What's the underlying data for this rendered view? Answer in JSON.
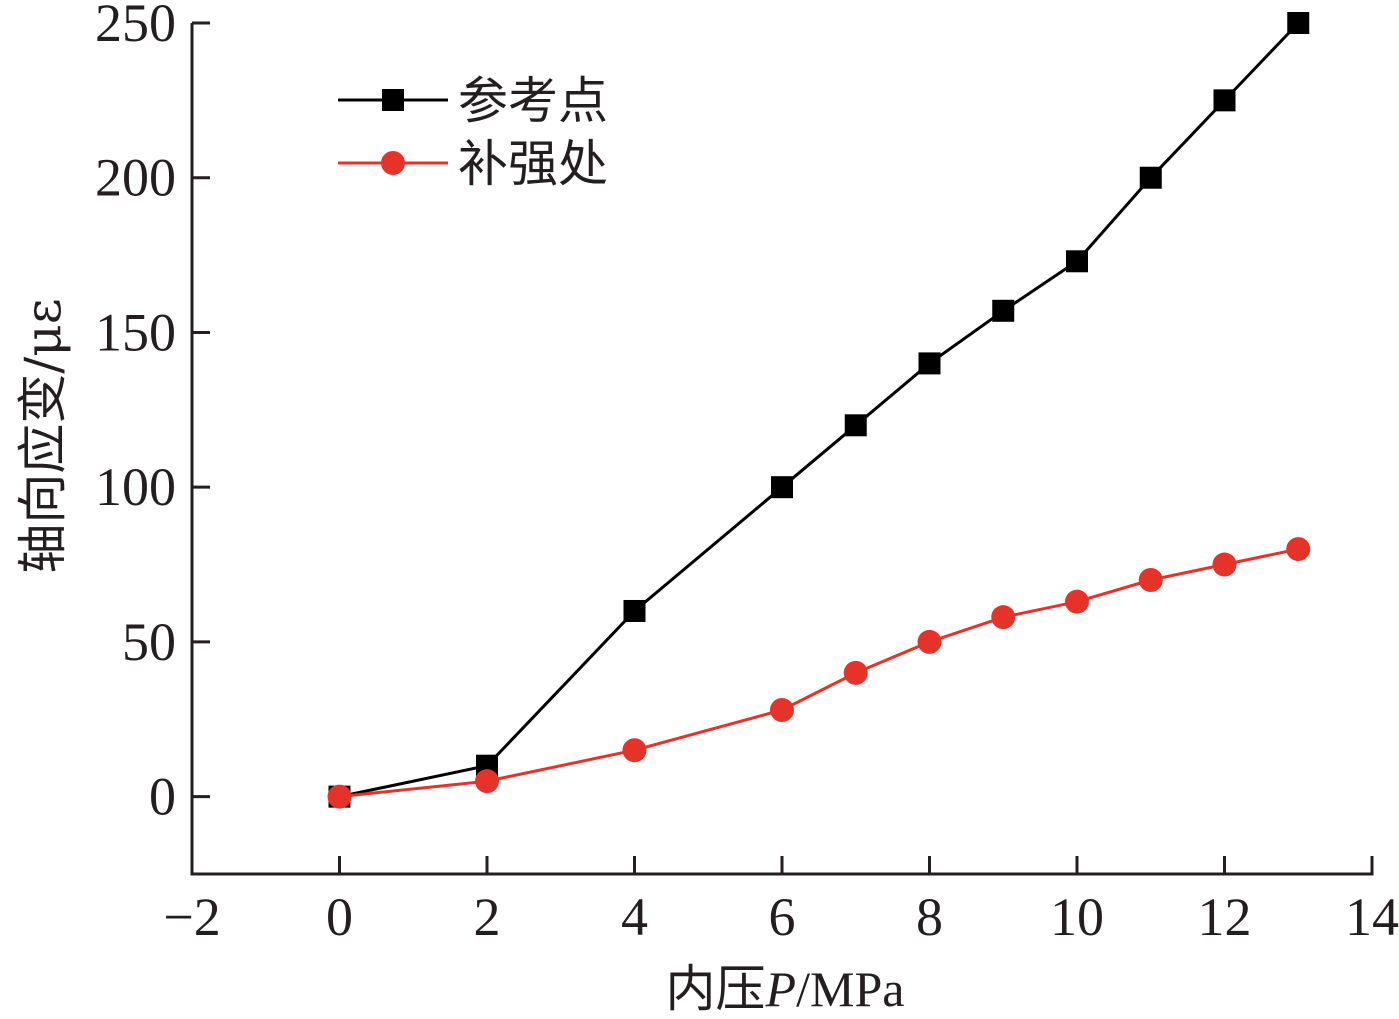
{
  "chart_data": {
    "type": "line",
    "xlabel": {
      "prefix": "内压",
      "italic": "P",
      "suffix": "/MPa"
    },
    "ylabel": "轴向应变/με",
    "xlim": [
      -2,
      14
    ],
    "ylim": [
      -25,
      250
    ],
    "x_ticks": [
      -2,
      0,
      2,
      4,
      6,
      8,
      10,
      12,
      14
    ],
    "y_ticks": [
      0,
      50,
      100,
      150,
      200,
      250
    ],
    "x_tick_labels": [
      "−2",
      "0",
      "2",
      "4",
      "6",
      "8",
      "10",
      "12",
      "14"
    ],
    "y_tick_labels": [
      "0",
      "50",
      "100",
      "150",
      "200",
      "250"
    ],
    "grid": false,
    "legend_position": "top-left",
    "series": [
      {
        "name": "参考点",
        "color": "#000000",
        "marker": "square",
        "x": [
          0,
          2,
          4,
          6,
          7,
          8,
          9,
          10,
          11,
          12,
          13
        ],
        "y": [
          0,
          10,
          60,
          100,
          120,
          140,
          157,
          173,
          200,
          225,
          250
        ]
      },
      {
        "name": "补强处",
        "color": "#e5332a",
        "marker": "circle",
        "x": [
          0,
          2,
          4,
          6,
          7,
          8,
          9,
          10,
          11,
          12,
          13
        ],
        "y": [
          0,
          5,
          15,
          28,
          40,
          50,
          58,
          63,
          70,
          75,
          80
        ]
      }
    ]
  }
}
